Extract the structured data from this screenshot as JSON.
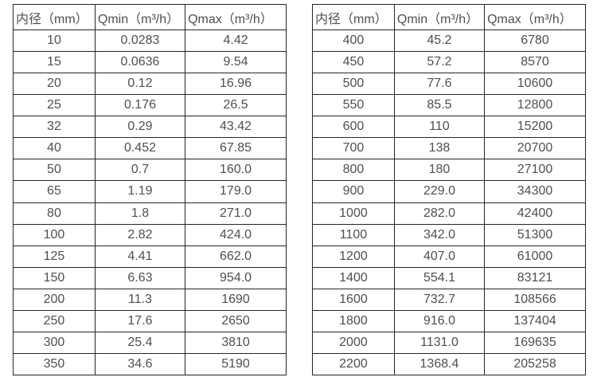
{
  "tables": [
    {
      "name": "small-diameter-flow-table",
      "headers": [
        "内径（mm）",
        "Qmin（m³/h）",
        "Qmax（m³/h）"
      ],
      "rows": [
        [
          "10",
          "0.0283",
          "4.42"
        ],
        [
          "15",
          "0.0636",
          "9.54"
        ],
        [
          "20",
          "0.12",
          "16.96"
        ],
        [
          "25",
          "0.176",
          "26.5"
        ],
        [
          "32",
          "0.29",
          "43.42"
        ],
        [
          "40",
          "0.452",
          "67.85"
        ],
        [
          "50",
          "0.7",
          "160.0"
        ],
        [
          "65",
          "1.19",
          "179.0"
        ],
        [
          "80",
          "1.8",
          "271.0"
        ],
        [
          "100",
          "2.82",
          "424.0"
        ],
        [
          "125",
          "4.41",
          "662.0"
        ],
        [
          "150",
          "6.63",
          "954.0"
        ],
        [
          "200",
          "11.3",
          "1690"
        ],
        [
          "250",
          "17.6",
          "2650"
        ],
        [
          "300",
          "25.4",
          "3810"
        ],
        [
          "350",
          "34.6",
          "5190"
        ]
      ]
    },
    {
      "name": "large-diameter-flow-table",
      "headers": [
        "内径（mm）",
        "Qmin（m³/h）",
        "Qmax（m³/h）"
      ],
      "rows": [
        [
          "400",
          "45.2",
          "6780"
        ],
        [
          "450",
          "57.2",
          "8570"
        ],
        [
          "500",
          "77.6",
          "10600"
        ],
        [
          "550",
          "85.5",
          "12800"
        ],
        [
          "600",
          "110",
          "15200"
        ],
        [
          "700",
          "138",
          "20700"
        ],
        [
          "800",
          "180",
          "27100"
        ],
        [
          "900",
          "229.0",
          "34300"
        ],
        [
          "1000",
          "282.0",
          "42400"
        ],
        [
          "1100",
          "342.0",
          "51300"
        ],
        [
          "1200",
          "407.0",
          "61000"
        ],
        [
          "1400",
          "554.1",
          "83121"
        ],
        [
          "1600",
          "732.7",
          "108566"
        ],
        [
          "1800",
          "916.0",
          "137404"
        ],
        [
          "2000",
          "1131.0",
          "169635"
        ],
        [
          "2200",
          "1368.4",
          "205258"
        ]
      ]
    }
  ],
  "colors": {
    "border": "#262626",
    "text": "#4f4f4f",
    "background": "#ffffff"
  }
}
